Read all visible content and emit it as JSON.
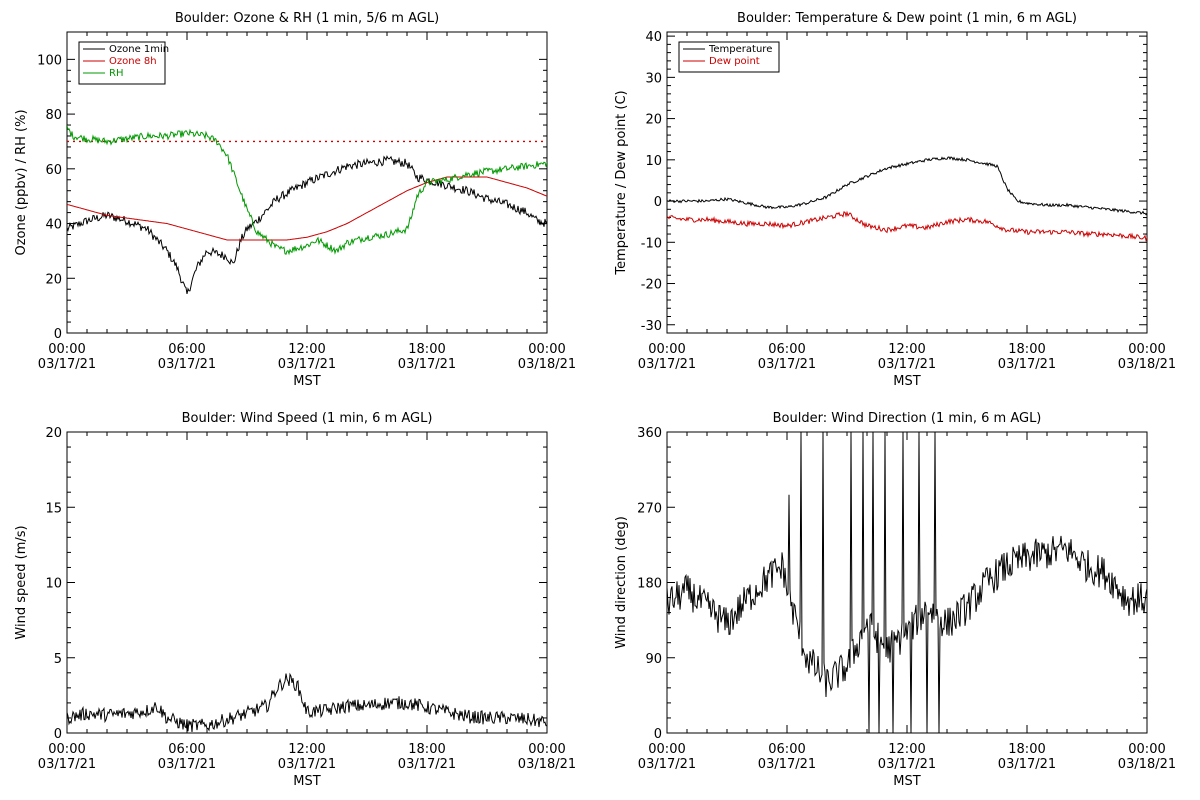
{
  "chart_data": [
    {
      "id": "ozone",
      "type": "line",
      "title": "Boulder: Ozone & RH (1 min, 5/6 m AGL)",
      "xlabel": "MST",
      "ylabel": "Ozone (ppbv) / RH (%)",
      "ylim": [
        0,
        110
      ],
      "yticks": [
        0,
        20,
        40,
        60,
        80,
        100
      ],
      "xlim": [
        0,
        24
      ],
      "xticks": [
        0,
        6,
        12,
        18,
        24
      ],
      "xtick_labels": [
        [
          "00:00",
          "03/17/21"
        ],
        [
          "06:00",
          "03/17/21"
        ],
        [
          "12:00",
          "03/17/21"
        ],
        [
          "18:00",
          "03/17/21"
        ],
        [
          "00:00",
          "03/18/21"
        ]
      ],
      "legend_position": "top-left",
      "legend": [
        {
          "name": "Ozone 1min",
          "color": "#000000"
        },
        {
          "name": "Ozone 8h",
          "color": "#cc0000"
        },
        {
          "name": "RH",
          "color": "#009900"
        }
      ],
      "series": [
        {
          "name": "Ozone 1min",
          "color": "#000000",
          "noise": 1.6,
          "x": [
            0,
            1,
            2,
            3,
            4,
            4.5,
            5,
            5.5,
            5.8,
            6,
            6.5,
            7,
            7.5,
            8,
            8.3,
            8.7,
            9,
            9.5,
            10,
            10.5,
            11,
            11.5,
            12,
            13,
            14,
            15,
            16,
            17,
            17.5,
            18,
            18.5,
            19,
            20,
            21,
            22,
            23,
            23.5,
            24
          ],
          "y": [
            38,
            41,
            43,
            41,
            38,
            34,
            30,
            24,
            18,
            14,
            24,
            30,
            29,
            28,
            25,
            34,
            38,
            41,
            45,
            49,
            51,
            53,
            55,
            58,
            61,
            62,
            63,
            62,
            57,
            56,
            55,
            54,
            52,
            49,
            47,
            44,
            41,
            40
          ]
        },
        {
          "name": "Ozone 8h",
          "color": "#cc0000",
          "noise": 0,
          "x": [
            0,
            1,
            2,
            3,
            4,
            5,
            6,
            7,
            8,
            9,
            10,
            11,
            12,
            13,
            14,
            15,
            16,
            17,
            18,
            19,
            20,
            21,
            22,
            23,
            24
          ],
          "y": [
            47,
            45,
            43,
            42,
            41,
            40,
            38,
            36,
            34,
            34,
            34,
            34,
            35,
            37,
            40,
            44,
            48,
            52,
            55,
            57,
            57,
            57,
            55,
            53,
            50
          ]
        },
        {
          "name": "RH",
          "color": "#009900",
          "noise": 1.3,
          "x": [
            0,
            0.3,
            1,
            2,
            3,
            4,
            5,
            6,
            7,
            7.5,
            8,
            8.5,
            9,
            9.5,
            10,
            10.5,
            11,
            11.5,
            12,
            12.5,
            13,
            13.5,
            14,
            15,
            16,
            17,
            17.2,
            17.5,
            18,
            19,
            20,
            21,
            22,
            23,
            24
          ],
          "y": [
            75,
            72,
            71,
            70,
            71,
            72,
            72,
            73,
            72,
            70,
            65,
            55,
            45,
            37,
            34,
            31,
            30,
            31,
            32,
            34,
            32,
            30,
            33,
            35,
            36,
            38,
            42,
            50,
            55,
            56,
            58,
            59,
            60,
            61,
            62
          ]
        }
      ],
      "reference_line": {
        "y": 70,
        "color": "#cc0000",
        "style": "dotted"
      }
    },
    {
      "id": "temperature",
      "type": "line",
      "title": "Boulder: Temperature & Dew point (1 min, 6 m AGL)",
      "xlabel": "MST",
      "ylabel": "Temperature / Dew point (C)",
      "ylim": [
        -32,
        41
      ],
      "yticks": [
        -30,
        -20,
        -10,
        0,
        10,
        20,
        30,
        40
      ],
      "xlim": [
        0,
        24
      ],
      "xticks": [
        0,
        6,
        12,
        18,
        24
      ],
      "xtick_labels": [
        [
          "00:00",
          "03/17/21"
        ],
        [
          "06:00",
          "03/17/21"
        ],
        [
          "12:00",
          "03/17/21"
        ],
        [
          "18:00",
          "03/17/21"
        ],
        [
          "00:00",
          "03/18/21"
        ]
      ],
      "legend_position": "top-left",
      "legend": [
        {
          "name": "Temperature",
          "color": "#000000"
        },
        {
          "name": "Dew point",
          "color": "#cc0000"
        }
      ],
      "series": [
        {
          "name": "Temperature",
          "color": "#000000",
          "noise": 0.35,
          "x": [
            0,
            1,
            2,
            3,
            4,
            5,
            6,
            7,
            8,
            9,
            10,
            11,
            12,
            13,
            14,
            15,
            16,
            16.5,
            17,
            17.5,
            18,
            19,
            20,
            21,
            22,
            23,
            24
          ],
          "y": [
            0,
            0,
            0,
            0.5,
            -0.5,
            -1.5,
            -1.5,
            -0.5,
            1,
            4,
            6,
            8,
            9,
            10,
            10.5,
            10,
            9,
            8.5,
            3,
            0,
            -0.5,
            -1,
            -1,
            -1.5,
            -2,
            -2.5,
            -3
          ]
        },
        {
          "name": "Dew point",
          "color": "#cc0000",
          "noise": 0.6,
          "x": [
            0,
            1,
            2,
            3,
            4,
            5,
            6,
            7,
            8,
            9,
            10,
            11,
            12,
            13,
            14,
            15,
            16,
            17,
            18,
            19,
            20,
            21,
            22,
            23,
            24
          ],
          "y": [
            -4,
            -4.5,
            -4.5,
            -5,
            -5.5,
            -5.5,
            -6,
            -5,
            -4,
            -3,
            -6,
            -7,
            -6,
            -6.5,
            -5,
            -4.5,
            -5,
            -7,
            -7.5,
            -7.5,
            -7.5,
            -8,
            -8,
            -8.5,
            -9
          ]
        }
      ]
    },
    {
      "id": "wind-speed",
      "type": "line",
      "title": "Boulder: Wind Speed (1 min, 6 m AGL)",
      "xlabel": "MST",
      "ylabel": "Wind speed (m/s)",
      "ylim": [
        0,
        20
      ],
      "yticks": [
        0,
        5,
        10,
        15,
        20
      ],
      "xlim": [
        0,
        24
      ],
      "xticks": [
        0,
        6,
        12,
        18,
        24
      ],
      "xtick_labels": [
        [
          "00:00",
          "03/17/21"
        ],
        [
          "06:00",
          "03/17/21"
        ],
        [
          "12:00",
          "03/17/21"
        ],
        [
          "18:00",
          "03/17/21"
        ],
        [
          "00:00",
          "03/18/21"
        ]
      ],
      "series": [
        {
          "name": "",
          "color": "#000000",
          "noise": 0.45,
          "x": [
            0,
            1,
            2,
            3,
            4,
            4.5,
            5,
            6,
            7,
            8,
            9,
            10,
            10.5,
            11,
            11.5,
            12,
            13,
            14,
            15,
            16,
            17,
            18,
            19,
            20,
            21,
            22,
            23,
            24
          ],
          "y": [
            1,
            1.3,
            1.2,
            1.3,
            1.5,
            1.8,
            1,
            0.5,
            0.5,
            0.9,
            1.3,
            1.8,
            3,
            3.6,
            3.2,
            1.4,
            1.5,
            1.8,
            1.8,
            2,
            2,
            1.7,
            1.4,
            1.1,
            1,
            1,
            0.9,
            0.7
          ]
        }
      ]
    },
    {
      "id": "wind-direction",
      "type": "line",
      "title": "Boulder: Wind Direction (1 min, 6 m AGL)",
      "xlabel": "MST",
      "ylabel": "Wind direction (deg)",
      "ylim": [
        0,
        360
      ],
      "yticks": [
        0,
        90,
        180,
        270,
        360
      ],
      "xlim": [
        0,
        24
      ],
      "xticks": [
        0,
        6,
        12,
        18,
        24
      ],
      "xtick_labels": [
        [
          "00:00",
          "03/17/21"
        ],
        [
          "06:00",
          "03/17/21"
        ],
        [
          "12:00",
          "03/17/21"
        ],
        [
          "18:00",
          "03/17/21"
        ],
        [
          "00:00",
          "03/18/21"
        ]
      ],
      "series": [
        {
          "name": "",
          "color": "#000000",
          "noise": 20,
          "x": [
            0,
            1,
            2,
            3,
            4,
            5,
            5.8,
            6,
            6.5,
            7,
            8,
            9,
            10,
            11,
            12,
            13,
            14,
            15,
            16,
            17,
            18,
            19,
            20,
            21,
            22,
            23,
            24
          ],
          "y": [
            155,
            170,
            150,
            130,
            160,
            185,
            200,
            170,
            130,
            90,
            60,
            80,
            130,
            100,
            120,
            150,
            130,
            150,
            180,
            200,
            210,
            215,
            220,
            200,
            190,
            160,
            160
          ],
          "spikes": [
            [
              6.1,
              285
            ],
            [
              6.7,
              360
            ],
            [
              7.8,
              360
            ],
            [
              9.2,
              360
            ],
            [
              9.8,
              360
            ],
            [
              10.1,
              0
            ],
            [
              10.3,
              360
            ],
            [
              10.6,
              0
            ],
            [
              10.9,
              360
            ],
            [
              11.3,
              0
            ],
            [
              11.8,
              360
            ],
            [
              12.2,
              0
            ],
            [
              12.6,
              360
            ],
            [
              13.0,
              0
            ],
            [
              13.4,
              360
            ],
            [
              13.6,
              0
            ]
          ]
        }
      ]
    }
  ]
}
